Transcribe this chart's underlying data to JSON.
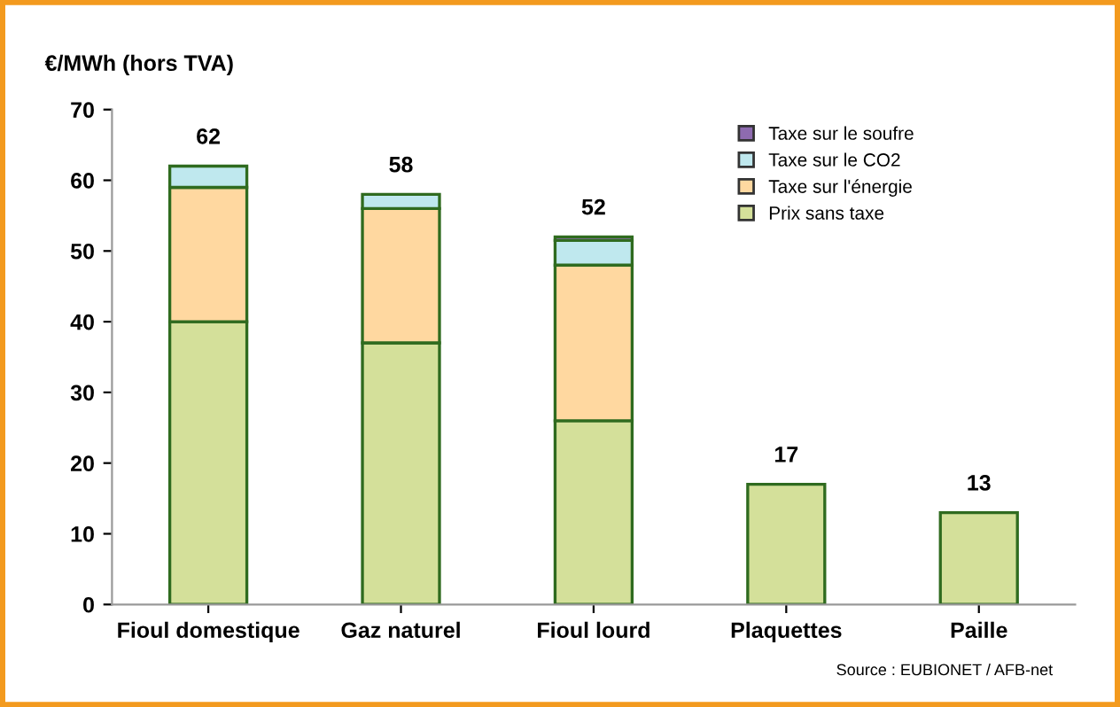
{
  "chart_data": {
    "type": "bar",
    "stacked": true,
    "ylabel": "€/MWh (hors TVA)",
    "categories": [
      "Fioul domestique",
      "Gaz naturel",
      "Fioul lourd",
      "Plaquettes",
      "Paille"
    ],
    "series": [
      {
        "name": "Prix sans taxe",
        "color": "#d4e09a",
        "values": [
          40,
          37,
          26,
          17,
          13
        ]
      },
      {
        "name": "Taxe sur l'énergie",
        "color": "#ffd8a0",
        "values": [
          19,
          19,
          22,
          null,
          null
        ]
      },
      {
        "name": "Taxe sur le CO2",
        "color": "#bfe8ee",
        "values": [
          3,
          2,
          3.5,
          null,
          null
        ]
      },
      {
        "name": "Taxe sur le soufre",
        "color": "#8e6bb0",
        "values": [
          null,
          null,
          0.5,
          null,
          null
        ]
      }
    ],
    "totals": [
      "62",
      "58",
      "52",
      "17",
      "13"
    ],
    "ylim": [
      0,
      70
    ],
    "yticks": [
      0,
      10,
      20,
      30,
      40,
      50,
      60,
      70
    ],
    "grid": false,
    "legend": "top right",
    "annotations": [
      "Source : EUBIONET / AFB-net"
    ]
  }
}
